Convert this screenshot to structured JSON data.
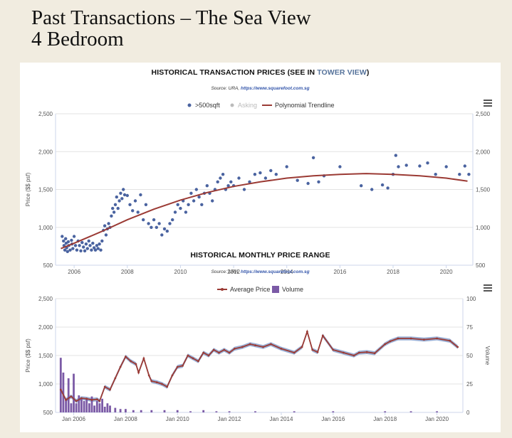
{
  "page": {
    "title_line1": "Past Transactions – The Sea View",
    "title_line2": "4 Bedroom"
  },
  "colors": {
    "scatter": "#4a63a0",
    "trend": "#9b3a34",
    "asking": "#bbbbbb",
    "band": "#6f8fc4",
    "volume": "#7b5aa6"
  },
  "chart1": {
    "title_prefix": "HISTORICAL TRANSACTION PRICES (SEE IN ",
    "title_link": "TOWER VIEW",
    "title_suffix": ")",
    "source_prefix": "Source: URA, ",
    "source_url": "https://www.squarefoot.com.sg",
    "legend": [
      ">500sqft",
      "Asking",
      "Polynomial Trendline"
    ],
    "ylabel": "Price ($$ psf)",
    "yticks": [
      "2,500",
      "2,000",
      "1,500",
      "1,000",
      "500"
    ],
    "yticks_right": [
      "2,500",
      "2,000",
      "1,500",
      "1,000",
      "500"
    ],
    "xticks": [
      "2006",
      "2008",
      "2010",
      "2012",
      "2014",
      "2016",
      "2018",
      "2020"
    ]
  },
  "chart2": {
    "title": "HISTORICAL MONTHLY PRICE RANGE",
    "source_prefix": "Source: URA, ",
    "source_url": "https://www.squarefoot.com.sg",
    "legend": [
      "Average Price",
      "Volume"
    ],
    "ylabel": "Price ($$ psf)",
    "ylabel_right": "Volume",
    "yticks": [
      "2,500",
      "2,000",
      "1,500",
      "1,000",
      "500"
    ],
    "yticks_right": [
      "100",
      "75",
      "50",
      "25",
      "0"
    ],
    "xticks": [
      "Jan 2006",
      "Jan 2008",
      "Jan 2010",
      "Jan 2012",
      "Jan 2014",
      "Jan 2016",
      "Jan 2018",
      "Jan 2020"
    ]
  },
  "chart_data": [
    {
      "type": "scatter",
      "title": "HISTORICAL TRANSACTION PRICES (SEE IN TOWER VIEW)",
      "ylabel": "Price ($$ psf)",
      "xlim": [
        2005.3,
        2021.0
      ],
      "ylim": [
        500,
        2500
      ],
      "grid": true,
      "legend_position": "top",
      "series": [
        {
          "name": ">500sqft",
          "kind": "scatter",
          "points": [
            [
              2005.55,
              880
            ],
            [
              2005.6,
              820
            ],
            [
              2005.62,
              760
            ],
            [
              2005.65,
              700
            ],
            [
              2005.68,
              850
            ],
            [
              2005.7,
              790
            ],
            [
              2005.72,
              730
            ],
            [
              2005.75,
              680
            ],
            [
              2005.78,
              810
            ],
            [
              2005.8,
              760
            ],
            [
              2005.85,
              700
            ],
            [
              2005.9,
              830
            ],
            [
              2005.92,
              780
            ],
            [
              2005.95,
              720
            ],
            [
              2006.0,
              880
            ],
            [
              2006.05,
              760
            ],
            [
              2006.1,
              700
            ],
            [
              2006.15,
              820
            ],
            [
              2006.2,
              760
            ],
            [
              2006.25,
              690
            ],
            [
              2006.3,
              800
            ],
            [
              2006.35,
              740
            ],
            [
              2006.4,
              690
            ],
            [
              2006.45,
              780
            ],
            [
              2006.5,
              720
            ],
            [
              2006.55,
              820
            ],
            [
              2006.6,
              760
            ],
            [
              2006.65,
              700
            ],
            [
              2006.7,
              790
            ],
            [
              2006.75,
              730
            ],
            [
              2006.8,
              700
            ],
            [
              2006.85,
              760
            ],
            [
              2006.9,
              720
            ],
            [
              2006.95,
              780
            ],
            [
              2007.0,
              700
            ],
            [
              2007.05,
              820
            ],
            [
              2007.1,
              960
            ],
            [
              2007.15,
              1020
            ],
            [
              2007.2,
              900
            ],
            [
              2007.25,
              980
            ],
            [
              2007.3,
              1050
            ],
            [
              2007.35,
              1000
            ],
            [
              2007.4,
              1150
            ],
            [
              2007.45,
              1250
            ],
            [
              2007.5,
              1200
            ],
            [
              2007.55,
              1300
            ],
            [
              2007.6,
              1400
            ],
            [
              2007.65,
              1250
            ],
            [
              2007.7,
              1350
            ],
            [
              2007.75,
              1450
            ],
            [
              2007.8,
              1380
            ],
            [
              2007.85,
              1500
            ],
            [
              2007.9,
              1430
            ],
            [
              2008.0,
              1420
            ],
            [
              2008.1,
              1300
            ],
            [
              2008.2,
              1220
            ],
            [
              2008.3,
              1350
            ],
            [
              2008.4,
              1200
            ],
            [
              2008.5,
              1430
            ],
            [
              2008.6,
              1100
            ],
            [
              2008.7,
              1300
            ],
            [
              2008.8,
              1050
            ],
            [
              2008.9,
              1000
            ],
            [
              2009.0,
              1100
            ],
            [
              2009.1,
              1000
            ],
            [
              2009.2,
              1050
            ],
            [
              2009.3,
              900
            ],
            [
              2009.4,
              980
            ],
            [
              2009.5,
              950
            ],
            [
              2009.6,
              1050
            ],
            [
              2009.7,
              1100
            ],
            [
              2009.8,
              1200
            ],
            [
              2009.9,
              1300
            ],
            [
              2010.0,
              1250
            ],
            [
              2010.1,
              1350
            ],
            [
              2010.2,
              1200
            ],
            [
              2010.3,
              1300
            ],
            [
              2010.4,
              1450
            ],
            [
              2010.5,
              1350
            ],
            [
              2010.6,
              1500
            ],
            [
              2010.7,
              1400
            ],
            [
              2010.8,
              1300
            ],
            [
              2010.9,
              1450
            ],
            [
              2011.0,
              1550
            ],
            [
              2011.1,
              1450
            ],
            [
              2011.2,
              1350
            ],
            [
              2011.3,
              1500
            ],
            [
              2011.4,
              1600
            ],
            [
              2011.5,
              1650
            ],
            [
              2011.6,
              1700
            ],
            [
              2011.7,
              1500
            ],
            [
              2011.8,
              1550
            ],
            [
              2011.9,
              1600
            ],
            [
              2012.0,
              1550
            ],
            [
              2012.2,
              1650
            ],
            [
              2012.4,
              1500
            ],
            [
              2012.6,
              1600
            ],
            [
              2012.8,
              1700
            ],
            [
              2013.0,
              1720
            ],
            [
              2013.2,
              1650
            ],
            [
              2013.4,
              1750
            ],
            [
              2013.6,
              1700
            ],
            [
              2014.0,
              1800
            ],
            [
              2014.4,
              1620
            ],
            [
              2014.8,
              1580
            ],
            [
              2015.0,
              1920
            ],
            [
              2015.2,
              1600
            ],
            [
              2015.4,
              1680
            ],
            [
              2016.0,
              1800
            ],
            [
              2016.8,
              1550
            ],
            [
              2017.2,
              1500
            ],
            [
              2017.6,
              1560
            ],
            [
              2017.8,
              1520
            ],
            [
              2018.0,
              1700
            ],
            [
              2018.1,
              1950
            ],
            [
              2018.2,
              1800
            ],
            [
              2018.5,
              1820
            ],
            [
              2019.0,
              1810
            ],
            [
              2019.3,
              1850
            ],
            [
              2019.6,
              1700
            ],
            [
              2020.0,
              1800
            ],
            [
              2020.5,
              1700
            ],
            [
              2020.7,
              1810
            ],
            [
              2020.85,
              1700
            ]
          ]
        },
        {
          "name": "Asking",
          "kind": "scatter",
          "points": []
        },
        {
          "name": "Polynomial Trendline",
          "kind": "line",
          "points": [
            [
              2005.5,
              720
            ],
            [
              2006,
              790
            ],
            [
              2007,
              940
            ],
            [
              2008,
              1100
            ],
            [
              2009,
              1240
            ],
            [
              2010,
              1360
            ],
            [
              2011,
              1460
            ],
            [
              2012,
              1540
            ],
            [
              2013,
              1600
            ],
            [
              2014,
              1650
            ],
            [
              2015,
              1680
            ],
            [
              2016,
              1700
            ],
            [
              2017,
              1710
            ],
            [
              2018,
              1700
            ],
            [
              2019,
              1680
            ],
            [
              2020,
              1650
            ],
            [
              2020.8,
              1610
            ]
          ]
        }
      ]
    },
    {
      "type": "line",
      "title": "HISTORICAL MONTHLY PRICE RANGE",
      "ylabel": "Price ($$ psf)",
      "y2label": "Volume",
      "xlim": [
        2005.3,
        2021.0
      ],
      "ylim": [
        500,
        2500
      ],
      "y2lim": [
        0,
        100
      ],
      "grid": true,
      "legend_position": "top",
      "series": [
        {
          "name": "Average Price",
          "kind": "line",
          "points": [
            [
              2005.5,
              900
            ],
            [
              2005.7,
              720
            ],
            [
              2005.9,
              780
            ],
            [
              2006.1,
              700
            ],
            [
              2006.3,
              750
            ],
            [
              2006.5,
              740
            ],
            [
              2006.7,
              720
            ],
            [
              2006.9,
              730
            ],
            [
              2007.0,
              700
            ],
            [
              2007.2,
              950
            ],
            [
              2007.4,
              900
            ],
            [
              2007.6,
              1100
            ],
            [
              2007.8,
              1300
            ],
            [
              2008.0,
              1480
            ],
            [
              2008.2,
              1400
            ],
            [
              2008.4,
              1350
            ],
            [
              2008.5,
              1200
            ],
            [
              2008.7,
              1450
            ],
            [
              2008.9,
              1150
            ],
            [
              2009.0,
              1050
            ],
            [
              2009.2,
              1030
            ],
            [
              2009.4,
              1000
            ],
            [
              2009.6,
              950
            ],
            [
              2009.8,
              1150
            ],
            [
              2010.0,
              1300
            ],
            [
              2010.2,
              1320
            ],
            [
              2010.4,
              1500
            ],
            [
              2010.6,
              1450
            ],
            [
              2010.8,
              1400
            ],
            [
              2011.0,
              1550
            ],
            [
              2011.2,
              1500
            ],
            [
              2011.4,
              1600
            ],
            [
              2011.6,
              1550
            ],
            [
              2011.8,
              1600
            ],
            [
              2012.0,
              1550
            ],
            [
              2012.2,
              1620
            ],
            [
              2012.5,
              1650
            ],
            [
              2012.8,
              1700
            ],
            [
              2013.0,
              1680
            ],
            [
              2013.3,
              1650
            ],
            [
              2013.6,
              1700
            ],
            [
              2014.0,
              1620
            ],
            [
              2014.5,
              1550
            ],
            [
              2014.8,
              1650
            ],
            [
              2015.0,
              1920
            ],
            [
              2015.2,
              1600
            ],
            [
              2015.4,
              1560
            ],
            [
              2015.6,
              1850
            ],
            [
              2016.0,
              1600
            ],
            [
              2016.4,
              1550
            ],
            [
              2016.8,
              1500
            ],
            [
              2017.0,
              1550
            ],
            [
              2017.3,
              1560
            ],
            [
              2017.6,
              1540
            ],
            [
              2018.0,
              1700
            ],
            [
              2018.2,
              1750
            ],
            [
              2018.5,
              1800
            ],
            [
              2019.0,
              1800
            ],
            [
              2019.5,
              1780
            ],
            [
              2020.0,
              1800
            ],
            [
              2020.5,
              1760
            ],
            [
              2020.8,
              1650
            ]
          ]
        },
        {
          "name": "Volume",
          "kind": "bar",
          "points": [
            [
              2005.5,
              48
            ],
            [
              2005.6,
              35
            ],
            [
              2005.7,
              12
            ],
            [
              2005.8,
              30
            ],
            [
              2005.9,
              8
            ],
            [
              2006.0,
              34
            ],
            [
              2006.1,
              8
            ],
            [
              2006.2,
              15
            ],
            [
              2006.3,
              12
            ],
            [
              2006.4,
              10
            ],
            [
              2006.5,
              12
            ],
            [
              2006.6,
              8
            ],
            [
              2006.7,
              14
            ],
            [
              2006.8,
              6
            ],
            [
              2006.9,
              10
            ],
            [
              2007.0,
              8
            ],
            [
              2007.1,
              12
            ],
            [
              2007.2,
              5
            ],
            [
              2007.3,
              8
            ],
            [
              2007.4,
              6
            ],
            [
              2007.6,
              4
            ],
            [
              2007.8,
              3
            ],
            [
              2008.0,
              3
            ],
            [
              2008.3,
              2
            ],
            [
              2008.6,
              2
            ],
            [
              2009.0,
              2
            ],
            [
              2009.5,
              2
            ],
            [
              2010.0,
              2
            ],
            [
              2010.5,
              1
            ],
            [
              2011.0,
              2
            ],
            [
              2011.5,
              1
            ],
            [
              2012.0,
              1
            ],
            [
              2013.0,
              1
            ],
            [
              2014.5,
              1
            ],
            [
              2016.0,
              1
            ],
            [
              2018.0,
              1
            ],
            [
              2019.0,
              1
            ],
            [
              2020.0,
              1
            ]
          ]
        }
      ]
    }
  ]
}
